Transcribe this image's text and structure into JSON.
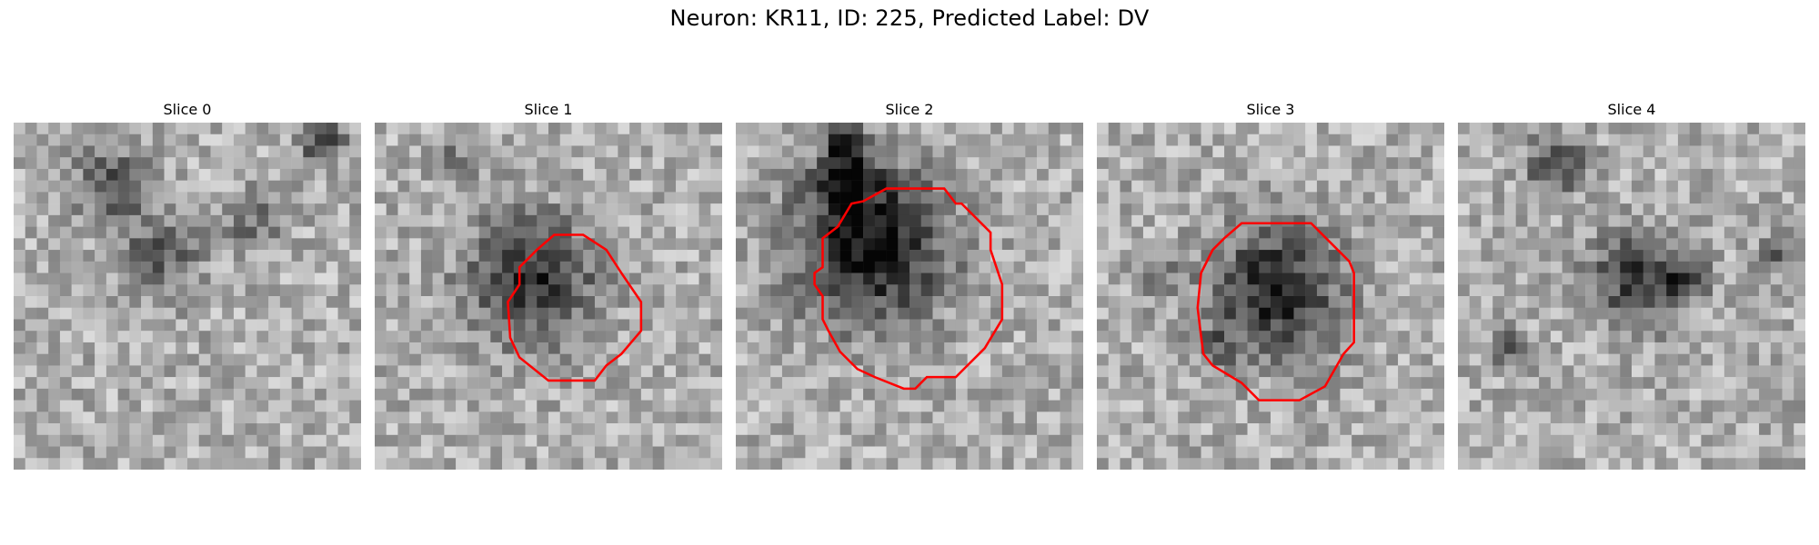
{
  "figure": {
    "title": "Neuron: KR11, ID: 225, Predicted Label: DV"
  },
  "panels": [
    {
      "label": "Slice 0",
      "has_roi": false,
      "roi_color": "#ff0000"
    },
    {
      "label": "Slice 1",
      "has_roi": true,
      "roi_color": "#ff0000"
    },
    {
      "label": "Slice 2",
      "has_roi": true,
      "roi_color": "#ff0000"
    },
    {
      "label": "Slice 3",
      "has_roi": true,
      "roi_color": "#ff0000"
    },
    {
      "label": "Slice 4",
      "has_roi": false,
      "roi_color": "#ff0000"
    }
  ]
}
